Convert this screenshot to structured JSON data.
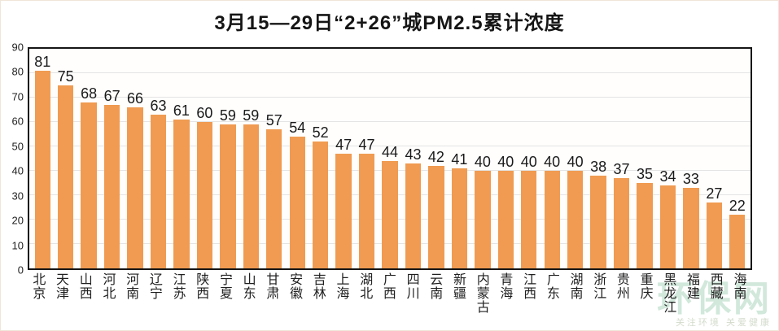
{
  "title": "3月15—29日“2+26”城PM2.5累计浓度",
  "chart_data": {
    "type": "bar",
    "title": "3月15—29日“2+26”城PM2.5累计浓度",
    "categories": [
      "北京",
      "天津",
      "山西",
      "河北",
      "河南",
      "辽宁",
      "江苏",
      "陕西",
      "宁夏",
      "山东",
      "甘肃",
      "安徽",
      "吉林",
      "上海",
      "湖北",
      "广西",
      "四川",
      "云南",
      "新疆",
      "内蒙古",
      "青海",
      "江西",
      "广东",
      "湖南",
      "浙江",
      "贵州",
      "重庆",
      "黑龙江",
      "福建",
      "西藏",
      "海南"
    ],
    "values": [
      81,
      75,
      68,
      67,
      66,
      63,
      61,
      60,
      59,
      59,
      57,
      54,
      52,
      47,
      47,
      44,
      43,
      42,
      41,
      40,
      40,
      40,
      40,
      40,
      38,
      37,
      35,
      34,
      33,
      27,
      22
    ],
    "xlabel": "",
    "ylabel": "",
    "ylim": [
      0,
      90
    ],
    "ytick_step": 10,
    "yticks": [
      0,
      10,
      20,
      30,
      40,
      50,
      60,
      70,
      80,
      90
    ],
    "bar_color": "#F09B51",
    "grid": "horizontal",
    "legend": "none",
    "value_labels": true
  },
  "watermark": {
    "logo_text": "环保网",
    "tagline": "关注环境 关爱健康"
  }
}
